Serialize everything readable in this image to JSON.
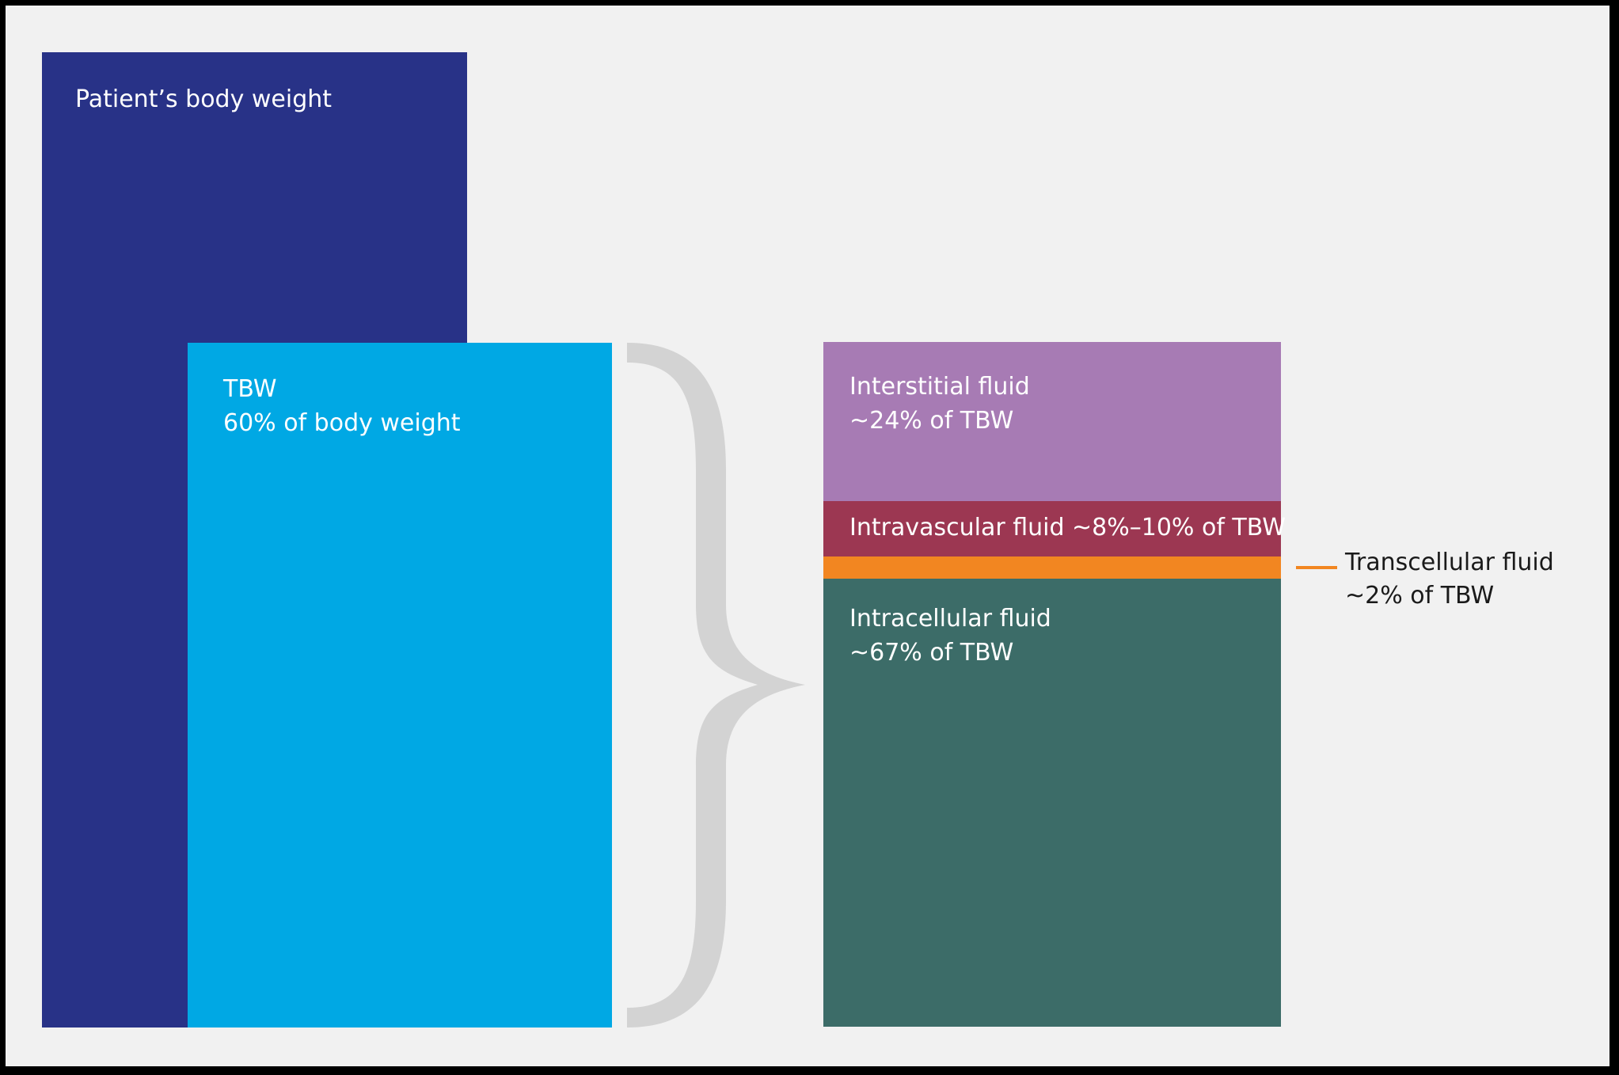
{
  "colors": {
    "background": "#f1f1f1",
    "body_weight": "#283287",
    "tbw": "#00a8e4",
    "interstitial": "#a77bb4",
    "intravascular": "#9c3752",
    "transcellular": "#f28621",
    "intracellular": "#3c6c68",
    "brace": "#d3d3d3",
    "callout_text": "#1a1a1a"
  },
  "body_weight": {
    "title": "Patient’s body weight"
  },
  "tbw": {
    "title": "TBW",
    "subtitle": "60% of body weight"
  },
  "compartments": {
    "interstitial": {
      "name": "Interstitial fluid",
      "share": "~24% of TBW"
    },
    "intravascular": {
      "label": "Intravascular fluid ~8%–10% of TBW"
    },
    "transcellular": {
      "name": "Transcellular fluid",
      "share": "~2% of TBW"
    },
    "intracellular": {
      "name": "Intracellular fluid",
      "share": "~67% of TBW"
    }
  }
}
